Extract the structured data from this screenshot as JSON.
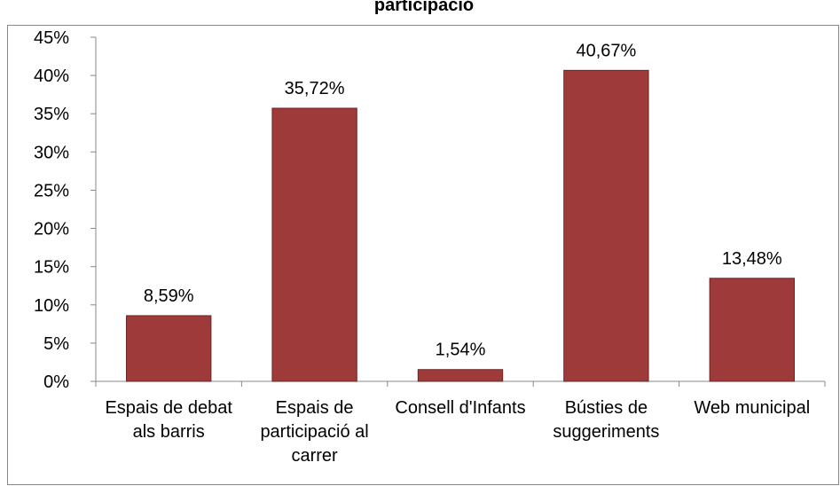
{
  "chart_data": {
    "type": "bar",
    "title": "participació",
    "categories": [
      "Espais de debat als barris",
      "Espais de participació al carrer",
      "Consell d'Infants",
      "Bústies de suggeriments",
      "Web municipal"
    ],
    "values": [
      8.59,
      35.72,
      1.54,
      40.67,
      13.48
    ],
    "value_labels": [
      "8,59%",
      "35,72%",
      "1,54%",
      "40,67%",
      "13,48%"
    ],
    "color": "#9e3a3a",
    "ylim": [
      0,
      45
    ],
    "yticks": [
      {
        "value": 0,
        "label": "0%"
      },
      {
        "value": 5,
        "label": "5%"
      },
      {
        "value": 10,
        "label": "10%"
      },
      {
        "value": 15,
        "label": "15%"
      },
      {
        "value": 20,
        "label": "20%"
      },
      {
        "value": 25,
        "label": "25%"
      },
      {
        "value": 30,
        "label": "30%"
      },
      {
        "value": 35,
        "label": "35%"
      },
      {
        "value": 40,
        "label": "40%"
      },
      {
        "value": 45,
        "label": "45%"
      }
    ],
    "grid": false
  }
}
